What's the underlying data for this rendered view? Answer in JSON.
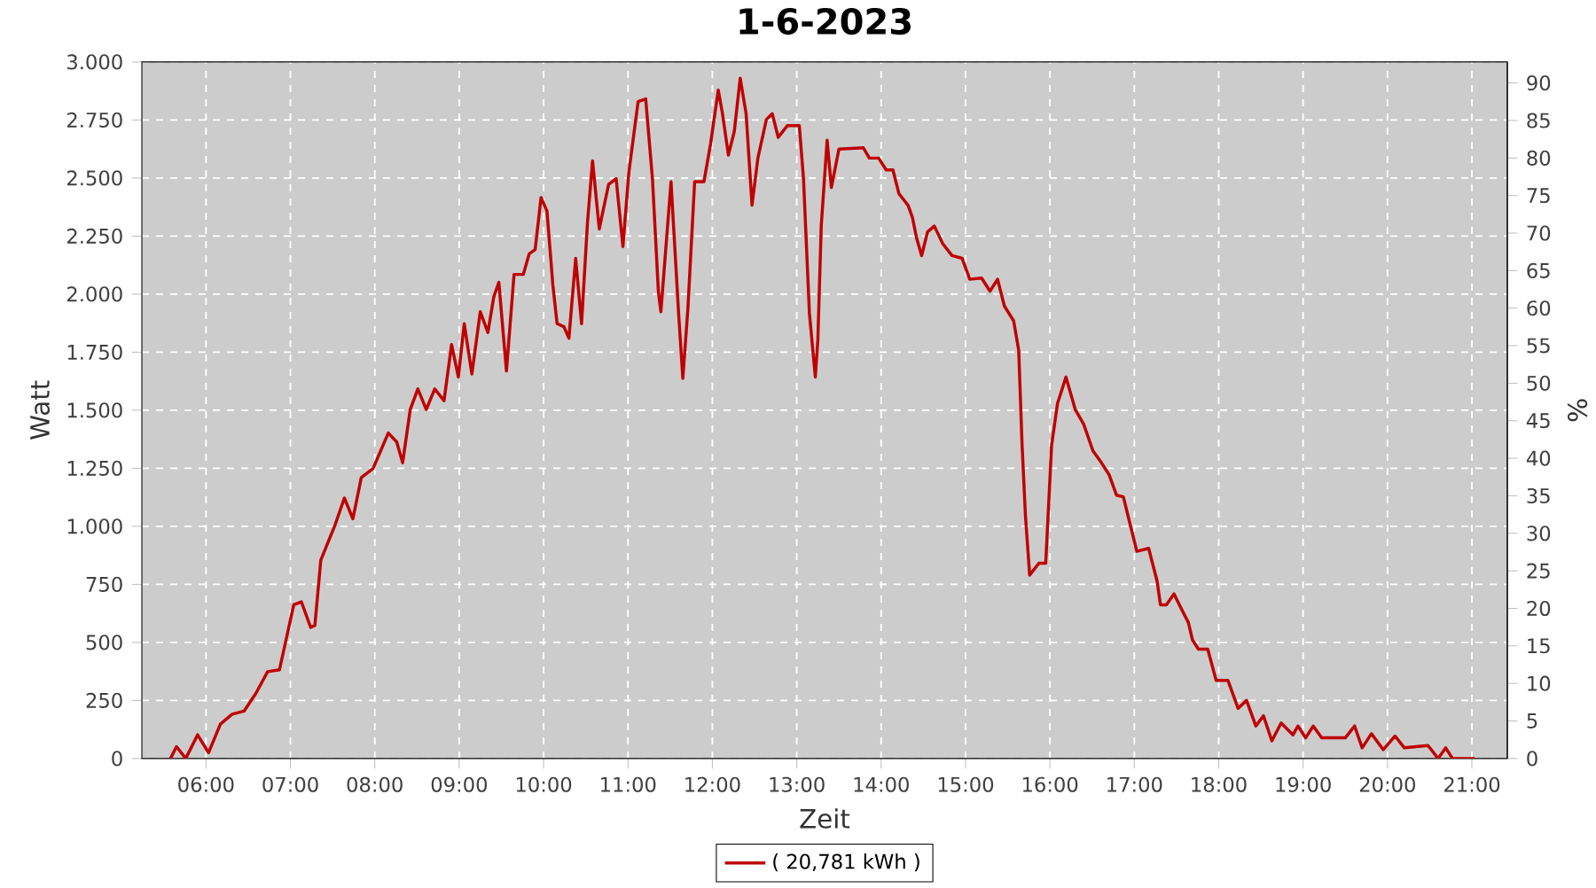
{
  "chart_data": {
    "type": "line",
    "title": "1-6-2023",
    "xlabel": "Zeit",
    "ylabel": "Watt",
    "y2label": "%",
    "x": [
      5.58,
      5.65,
      5.76,
      5.9,
      6.03,
      6.17,
      6.31,
      6.45,
      6.59,
      6.73,
      6.87,
      6.94,
      7.04,
      7.13,
      7.24,
      7.29,
      7.36,
      7.53,
      7.64,
      7.74,
      7.84,
      7.98,
      8.16,
      8.26,
      8.33,
      8.42,
      8.51,
      8.61,
      8.71,
      8.82,
      8.91,
      8.99,
      9.06,
      9.15,
      9.25,
      9.34,
      9.41,
      9.47,
      9.56,
      9.65,
      9.76,
      9.83,
      9.9,
      9.97,
      10.04,
      10.11,
      10.16,
      10.24,
      10.3,
      10.38,
      10.45,
      10.52,
      10.58,
      10.66,
      10.77,
      10.86,
      10.94,
      11.01,
      11.12,
      11.21,
      11.29,
      11.36,
      11.39,
      11.51,
      11.6,
      11.65,
      11.71,
      11.79,
      11.9,
      11.98,
      12.07,
      12.12,
      12.19,
      12.26,
      12.33,
      12.4,
      12.47,
      12.54,
      12.64,
      12.71,
      12.78,
      12.89,
      13.03,
      13.08,
      13.15,
      13.22,
      13.25,
      13.29,
      13.36,
      13.41,
      13.5,
      13.79,
      13.86,
      13.97,
      14.06,
      14.14,
      14.21,
      14.32,
      14.37,
      14.42,
      14.48,
      14.55,
      14.63,
      14.73,
      14.84,
      14.96,
      15.05,
      15.19,
      15.29,
      15.38,
      15.46,
      15.57,
      15.63,
      15.67,
      15.71,
      15.76,
      15.87,
      15.95,
      16.02,
      16.09,
      16.19,
      16.3,
      16.4,
      16.51,
      16.61,
      16.7,
      16.79,
      16.87,
      16.96,
      17.03,
      17.17,
      17.27,
      17.31,
      17.38,
      17.47,
      17.55,
      17.64,
      17.69,
      17.76,
      17.87,
      17.97,
      18.11,
      18.23,
      18.33,
      18.44,
      18.53,
      18.63,
      18.74,
      18.88,
      18.94,
      19.03,
      19.12,
      19.22,
      19.5,
      19.61,
      19.7,
      19.81,
      19.95,
      20.09,
      20.2,
      20.48,
      20.6,
      20.69,
      20.77,
      21.03
    ],
    "series": [
      {
        "name": "( 20,781 kWh )",
        "color": "#c00000",
        "values": [
          0,
          51,
          0,
          102,
          25,
          148,
          191,
          204,
          280,
          374,
          382,
          497,
          662,
          675,
          565,
          573,
          854,
          1007,
          1122,
          1032,
          1210,
          1249,
          1402,
          1363,
          1274,
          1503,
          1592,
          1503,
          1592,
          1541,
          1783,
          1643,
          1873,
          1656,
          1924,
          1835,
          1988,
          2051,
          1669,
          2085,
          2085,
          2174,
          2192,
          2416,
          2358,
          2039,
          1873,
          1860,
          1810,
          2154,
          1873,
          2307,
          2574,
          2281,
          2472,
          2497,
          2205,
          2523,
          2829,
          2841,
          2497,
          2013,
          1924,
          2484,
          1917,
          1637,
          1937,
          2484,
          2484,
          2650,
          2879,
          2777,
          2599,
          2701,
          2930,
          2777,
          2383,
          2587,
          2752,
          2777,
          2675,
          2726,
          2726,
          2497,
          1917,
          1643,
          1803,
          2293,
          2663,
          2459,
          2625,
          2630,
          2586,
          2586,
          2535,
          2535,
          2433,
          2382,
          2331,
          2242,
          2166,
          2268,
          2293,
          2217,
          2166,
          2154,
          2064,
          2069,
          2013,
          2064,
          1949,
          1885,
          1758,
          1350,
          1045,
          790,
          841,
          841,
          1350,
          1529,
          1643,
          1503,
          1440,
          1325,
          1274,
          1223,
          1134,
          1127,
          994,
          892,
          905,
          764,
          662,
          662,
          709,
          650,
          586,
          510,
          471,
          471,
          336,
          336,
          216,
          250,
          140,
          184,
          76,
          153,
          102,
          140,
          89,
          140,
          89,
          89,
          140,
          46,
          107,
          38,
          97,
          46,
          56,
          0,
          46,
          0,
          0
        ]
      }
    ],
    "xlim": [
      5.24,
      21.42
    ],
    "xticks": [
      {
        "value": 6,
        "label": "06:00"
      },
      {
        "value": 7,
        "label": "07:00"
      },
      {
        "value": 8,
        "label": "08:00"
      },
      {
        "value": 9,
        "label": "09:00"
      },
      {
        "value": 10,
        "label": "10:00"
      },
      {
        "value": 11,
        "label": "11:00"
      },
      {
        "value": 12,
        "label": "12:00"
      },
      {
        "value": 13,
        "label": "13:00"
      },
      {
        "value": 14,
        "label": "14:00"
      },
      {
        "value": 15,
        "label": "15:00"
      },
      {
        "value": 16,
        "label": "16:00"
      },
      {
        "value": 17,
        "label": "17:00"
      },
      {
        "value": 18,
        "label": "18:00"
      },
      {
        "value": 19,
        "label": "19:00"
      },
      {
        "value": 20,
        "label": "20:00"
      },
      {
        "value": 21,
        "label": "21:00"
      }
    ],
    "ylim": [
      0,
      3000
    ],
    "yticks": [
      0,
      250,
      500,
      750,
      {
        "value": 1000,
        "label": "1.000"
      },
      {
        "value": 1250,
        "label": "1.250"
      },
      {
        "value": 1500,
        "label": "1.500"
      },
      {
        "value": 1750,
        "label": "1.750"
      },
      {
        "value": 2000,
        "label": "2.000"
      },
      {
        "value": 2250,
        "label": "2.250"
      },
      {
        "value": 2500,
        "label": "2.500"
      },
      {
        "value": 2750,
        "label": "2.750"
      },
      {
        "value": 3000,
        "label": "3.000"
      }
    ],
    "y2lim": [
      0,
      92.8
    ],
    "y2ticks": [
      0,
      5,
      10,
      15,
      20,
      25,
      30,
      35,
      40,
      45,
      50,
      55,
      60,
      65,
      70,
      75,
      80,
      85,
      90
    ],
    "grid": true,
    "legend": "bottom",
    "marker": "none",
    "line_style": "solid"
  }
}
